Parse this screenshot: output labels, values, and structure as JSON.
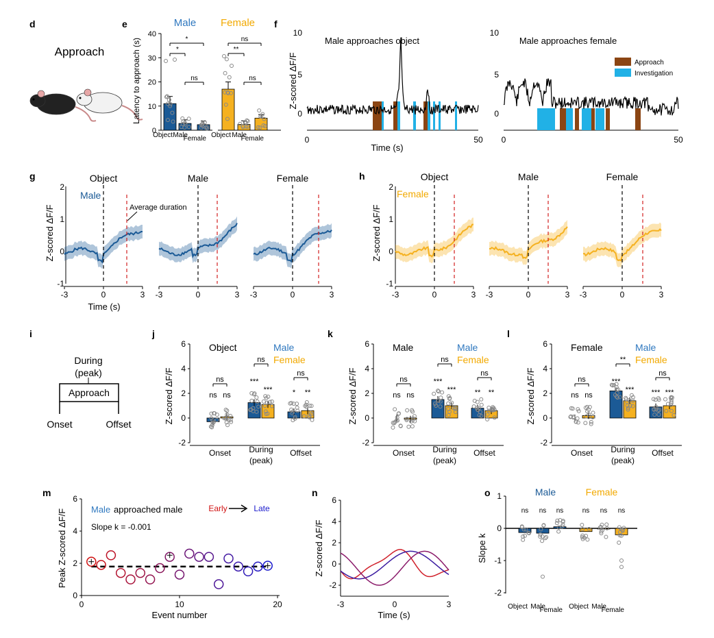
{
  "colors": {
    "male": "#1b5a96",
    "female": "#f5b120",
    "approach": "#8b4513",
    "investigation": "#21b1e6",
    "early": "#d01010",
    "late": "#1a1acc",
    "dashed": "#d21e1e",
    "male_text": "#2f78bf",
    "female_text": "#f2a900"
  },
  "panels": {
    "d": "d",
    "e": "e",
    "f": "f",
    "g": "g",
    "h": "h",
    "i": "i",
    "j": "j",
    "k": "k",
    "l": "l",
    "m": "m",
    "n": "n",
    "o": "o"
  },
  "d": {
    "title": "Approach"
  },
  "e": {
    "ylabel": "Latency to approach (s)",
    "male_label": "Male",
    "female_label": "Female",
    "yticks": [
      "0",
      "10",
      "20",
      "30",
      "40"
    ],
    "ylim": [
      0,
      40
    ],
    "categories": [
      "Object",
      "Male",
      "Female",
      "Object",
      "Male",
      "Female"
    ],
    "bars": [
      11,
      2.8,
      2.3,
      17,
      2.4,
      5
    ],
    "sig": [
      "*",
      "*",
      "ns",
      "ns",
      "**",
      "ns"
    ]
  },
  "f": {
    "ylabel": "Z-scored ΔF/F",
    "xlabel": "Time (s)",
    "title_left": "Male approaches object",
    "title_right": "Male approaches female",
    "yticks": [
      "0",
      "5",
      "10"
    ],
    "xticks_left": [
      "0",
      "50"
    ],
    "xticks_right": [
      "0",
      "50"
    ],
    "legend": [
      "Approach",
      "Investigation"
    ]
  },
  "g": {
    "ylabel": "Z-scored ΔF/F",
    "xlabel": "Time (s)",
    "tag": "Male",
    "titles": [
      "Object",
      "Male",
      "Female"
    ],
    "yticks": [
      "-1",
      "0",
      "1",
      "2"
    ],
    "xticks": [
      "-3",
      "0",
      "3"
    ],
    "annotation": "Average duration"
  },
  "h": {
    "ylabel": "Z-scored ΔF/F",
    "tag": "Female",
    "titles": [
      "Object",
      "Male",
      "Female"
    ],
    "yticks": [
      "-1",
      "0",
      "1",
      "2"
    ],
    "xticks": [
      "-3",
      "0",
      "3"
    ]
  },
  "i": {
    "during": "During",
    "peak": "(peak)",
    "box": "Approach",
    "onset": "Onset",
    "offset": "Offset"
  },
  "bars_jkl": {
    "ylabel": "Z-scored ΔF/F",
    "yticks": [
      "-2",
      "0",
      "2",
      "4",
      "6"
    ],
    "xcats": [
      "Onset",
      "During",
      "(peak)",
      "Offset"
    ],
    "legend_male": "Male",
    "legend_female": "Female"
  },
  "j": {
    "title": "Object",
    "male": [
      -0.3,
      1.25,
      0.5
    ],
    "female": [
      0.1,
      1.1,
      0.6
    ],
    "stars_m": [
      "ns",
      "***",
      "*"
    ],
    "stars_f": [
      "ns",
      "***",
      "**"
    ],
    "pair": [
      "ns",
      "ns",
      "ns"
    ]
  },
  "k": {
    "title": "Male",
    "male": [
      0,
      1.5,
      0.8
    ],
    "female": [
      -0.1,
      1.0,
      0.6
    ],
    "stars_m": [
      "ns",
      "***",
      "**"
    ],
    "stars_f": [
      "ns",
      "***",
      "**"
    ],
    "pair": [
      "ns",
      "ns",
      "ns"
    ]
  },
  "l": {
    "title": "Female",
    "male": [
      0,
      2.2,
      0.9
    ],
    "female": [
      0.2,
      1.4,
      1.0
    ],
    "stars_m": [
      "ns",
      "***",
      "***"
    ],
    "stars_f": [
      "ns",
      "***",
      "***"
    ],
    "pair": [
      "ns",
      "**",
      "ns"
    ]
  },
  "m": {
    "ylabel": "Peak Z-scored ΔF/F",
    "xlabel": "Event number",
    "legend_male": "Male",
    "legend_text": "approached male",
    "slope": "Slope k = -0.001",
    "early": "Early",
    "late": "Late",
    "yticks": [
      "0",
      "2",
      "4",
      "6"
    ],
    "xticks": [
      "0",
      "10",
      "20"
    ],
    "points": [
      2.1,
      1.9,
      2.5,
      1.4,
      1.0,
      1.4,
      1.0,
      1.7,
      2.4,
      1.3,
      2.6,
      2.4,
      2.4,
      0.7,
      2.3,
      1.8,
      1.5,
      1.8,
      1.85
    ],
    "fit": 1.8
  },
  "n": {
    "ylabel": "Z-scored ΔF/F",
    "xlabel": "Time (s)",
    "yticks": [
      "-2",
      "0",
      "2",
      "4",
      "6"
    ],
    "xticks": [
      "-3",
      "0",
      "3"
    ]
  },
  "o": {
    "ylabel": "Slope k",
    "male_label": "Male",
    "female_label": "Female",
    "yticks": [
      "-2",
      "-1",
      "0",
      "1"
    ],
    "categories": [
      "Object",
      "Male",
      "Female",
      "Object",
      "Male",
      "Female"
    ],
    "bars": [
      -0.13,
      -0.15,
      0.05,
      -0.1,
      -0.02,
      -0.2
    ],
    "sig": [
      "ns",
      "ns",
      "ns",
      "ns",
      "ns",
      "ns"
    ]
  }
}
